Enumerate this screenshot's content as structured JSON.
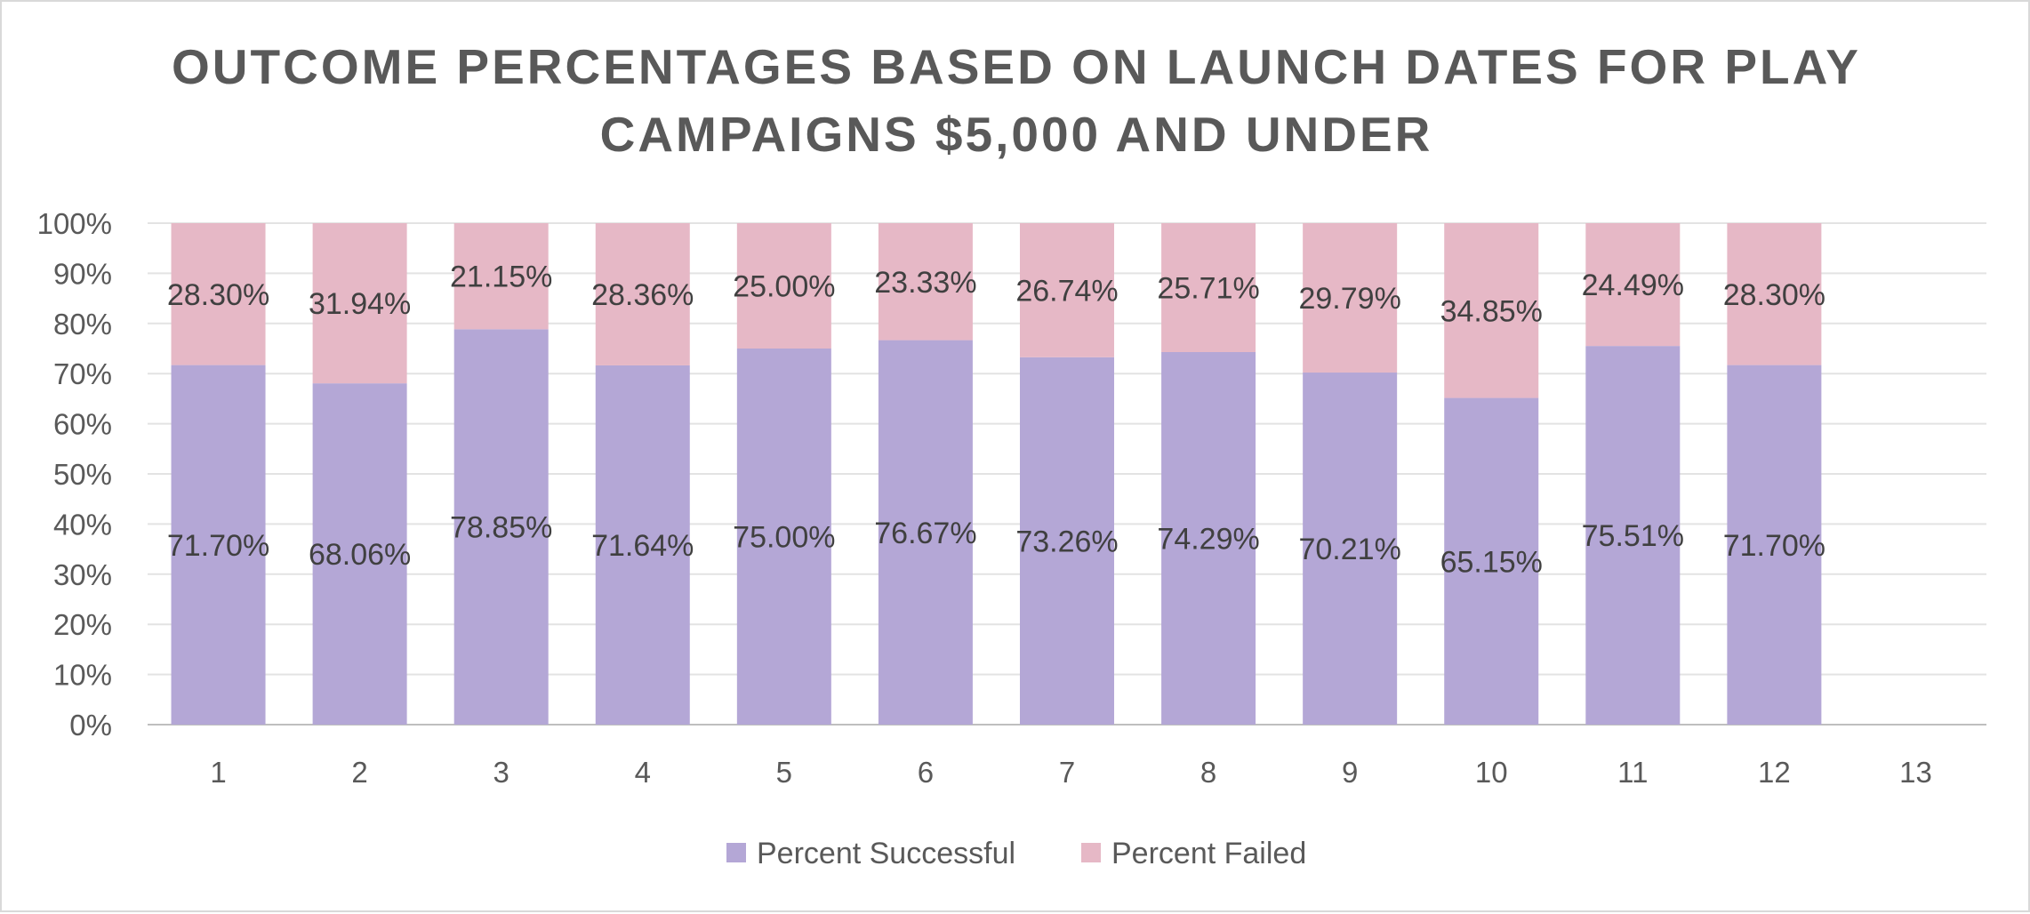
{
  "chart_data": {
    "type": "bar",
    "stacked": true,
    "title_lines": [
      "OUTCOME PERCENTAGES BASED ON LAUNCH DATES FOR PLAY",
      "CAMPAIGNS $5,000 AND UNDER"
    ],
    "categories": [
      "1",
      "2",
      "3",
      "4",
      "5",
      "6",
      "7",
      "8",
      "9",
      "10",
      "11",
      "12",
      "13"
    ],
    "series": [
      {
        "name": "Percent Successful",
        "color": "#b4a7d6",
        "values": [
          71.7,
          68.06,
          78.85,
          71.64,
          75.0,
          76.67,
          73.26,
          74.29,
          70.21,
          65.15,
          75.51,
          71.7,
          null
        ],
        "labels": [
          "71.70%",
          "68.06%",
          "78.85%",
          "71.64%",
          "75.00%",
          "76.67%",
          "73.26%",
          "74.29%",
          "70.21%",
          "65.15%",
          "75.51%",
          "71.70%",
          ""
        ]
      },
      {
        "name": "Percent Failed",
        "color": "#e6b8c6",
        "values": [
          28.3,
          31.94,
          21.15,
          28.36,
          25.0,
          23.33,
          26.74,
          25.71,
          29.79,
          34.85,
          24.49,
          28.3,
          null
        ],
        "labels": [
          "28.30%",
          "31.94%",
          "21.15%",
          "28.36%",
          "25.00%",
          "23.33%",
          "26.74%",
          "25.71%",
          "29.79%",
          "34.85%",
          "24.49%",
          "28.30%",
          ""
        ]
      }
    ],
    "y_ticks": [
      "0%",
      "10%",
      "20%",
      "30%",
      "40%",
      "50%",
      "60%",
      "70%",
      "80%",
      "90%",
      "100%"
    ],
    "ylim": [
      0,
      100
    ],
    "grid": true,
    "legend": "bottom"
  }
}
